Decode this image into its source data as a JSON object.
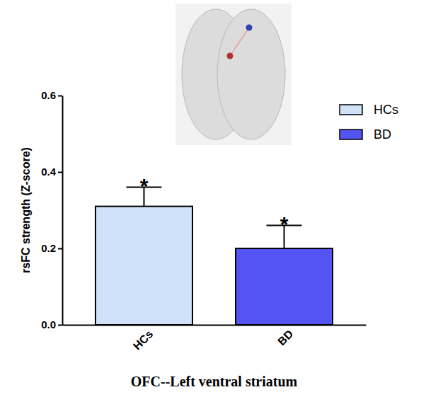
{
  "chart_data": {
    "type": "bar",
    "x_label": "OFC--Left ventral striatum",
    "y_label": "rsFC strength (Z-score)",
    "categories": [
      "HCs",
      "BD"
    ],
    "values": [
      0.31,
      0.2
    ],
    "errors": [
      0.05,
      0.06
    ],
    "colors": [
      "#cfe2f8",
      "#5454f2"
    ],
    "annotations": [
      "*",
      "*"
    ],
    "ylim": [
      0,
      0.6
    ],
    "yticks": [
      {
        "value": 0,
        "label": "0.0"
      },
      {
        "value": 0.2,
        "label": "0.2"
      },
      {
        "value": 0.4,
        "label": "0.4"
      },
      {
        "value": 0.6,
        "label": "0.6"
      }
    ],
    "legend": "top-right",
    "grid": false
  }
}
